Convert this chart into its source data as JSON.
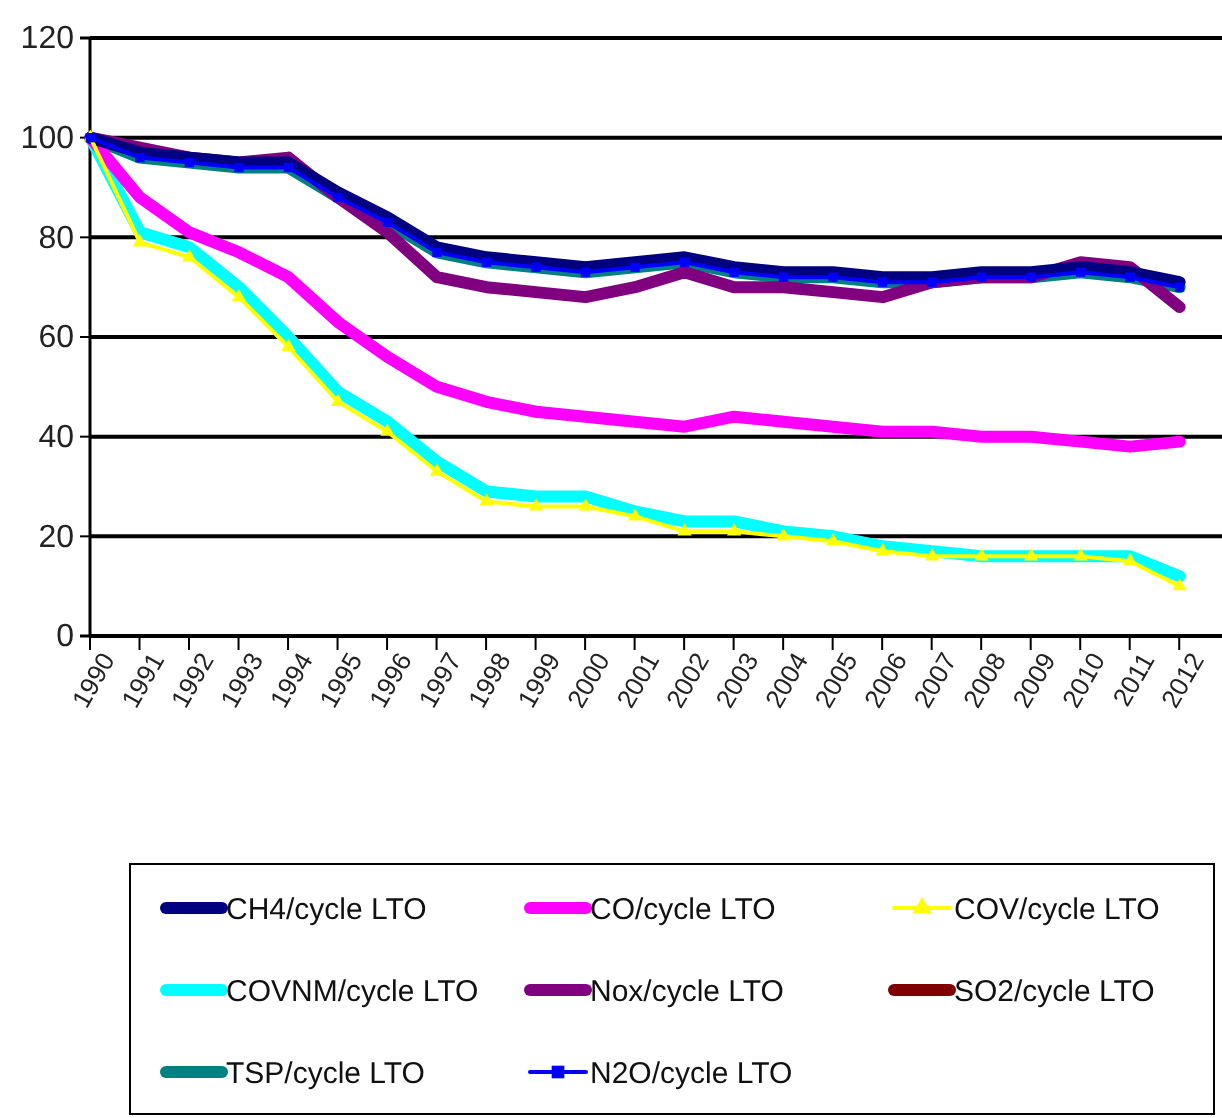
{
  "chart_data": {
    "type": "line",
    "categories": [
      "1990",
      "1991",
      "1992",
      "1993",
      "1994",
      "1995",
      "1996",
      "1997",
      "1998",
      "1999",
      "2000",
      "2001",
      "2002",
      "2003",
      "2004",
      "2005",
      "2006",
      "2007",
      "2008",
      "2009",
      "2010",
      "2011",
      "2012"
    ],
    "ylim": [
      0,
      120
    ],
    "yticks": [
      0,
      20,
      40,
      60,
      80,
      100,
      120
    ],
    "grid": "y",
    "legend": "bottom",
    "series": [
      {
        "name": "CH4/cycle LTO",
        "color": "#000080",
        "values": [
          100,
          97,
          96,
          95,
          95,
          89,
          84,
          78,
          76,
          75,
          74,
          75,
          76,
          74,
          73,
          73,
          72,
          72,
          73,
          73,
          74,
          73,
          71
        ]
      },
      {
        "name": "CO/cycle LTO",
        "color": "#ff00ff",
        "values": [
          100,
          88,
          81,
          77,
          72,
          63,
          56,
          50,
          47,
          45,
          44,
          43,
          42,
          44,
          43,
          42,
          41,
          41,
          40,
          40,
          39,
          38,
          39
        ]
      },
      {
        "name": "COV/cycle LTO",
        "color": "#ffff00",
        "marker": "triangle",
        "values": [
          100,
          79,
          76,
          68,
          58,
          47,
          41,
          33,
          27,
          26,
          26,
          24,
          21,
          21,
          20,
          19,
          17,
          16,
          16,
          16,
          16,
          15,
          10
        ]
      },
      {
        "name": "COVNM/cycle LTO",
        "color": "#00ffff",
        "values": [
          100,
          81,
          78,
          70,
          60,
          49,
          43,
          35,
          29,
          28,
          28,
          25,
          23,
          23,
          21,
          20,
          18,
          17,
          16,
          16,
          16,
          16,
          12
        ]
      },
      {
        "name": "Nox/cycle LTO",
        "color": "#800080",
        "values": [
          100,
          98,
          96,
          95,
          96,
          88,
          81,
          72,
          70,
          69,
          68,
          70,
          73,
          70,
          70,
          69,
          68,
          71,
          72,
          72,
          75,
          74,
          66
        ]
      },
      {
        "name": "SO2/cycle LTO",
        "color": "#800000",
        "values": [
          null,
          null,
          null,
          null,
          null,
          null,
          null,
          null,
          null,
          null,
          null,
          null,
          null,
          null,
          null,
          null,
          null,
          null,
          null,
          null,
          null,
          null,
          null
        ]
      },
      {
        "name": "TSP/cycle LTO",
        "color": "#008080",
        "values": [
          100,
          96,
          95,
          94,
          94,
          88,
          83,
          77,
          75,
          74,
          73,
          74,
          75,
          73,
          72,
          72,
          71,
          71,
          72,
          72,
          73,
          72,
          70
        ]
      },
      {
        "name": "N2O/cycle LTO",
        "color": "#0000ff",
        "marker": "square",
        "values": [
          100,
          96,
          95,
          94,
          94,
          88,
          83,
          77,
          75,
          74,
          73,
          74,
          75,
          73,
          72,
          72,
          71,
          71,
          72,
          72,
          73,
          72,
          70
        ]
      }
    ]
  }
}
